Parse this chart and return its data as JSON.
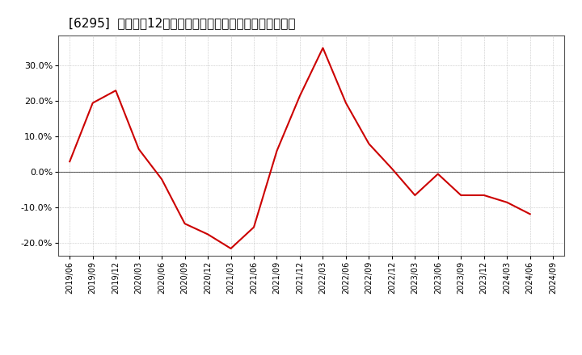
{
  "title": "[6295]  売上高の12か月移動合計の対前年同期増減率の推移",
  "line_color": "#cc0000",
  "background_color": "#ffffff",
  "plot_bg_color": "#ffffff",
  "grid_color": "#999999",
  "zero_line_color": "#555555",
  "border_color": "#555555",
  "ylim": [
    -0.235,
    0.385
  ],
  "yticks": [
    -0.2,
    -0.1,
    0.0,
    0.1,
    0.2,
    0.3
  ],
  "dates": [
    "2019/06",
    "2019/09",
    "2019/12",
    "2020/03",
    "2020/06",
    "2020/09",
    "2020/12",
    "2021/03",
    "2021/06",
    "2021/09",
    "2021/12",
    "2022/03",
    "2022/06",
    "2022/09",
    "2022/12",
    "2023/03",
    "2023/06",
    "2023/09",
    "2023/12",
    "2024/03",
    "2024/06",
    "2024/09"
  ],
  "values": [
    0.03,
    0.195,
    0.23,
    0.065,
    -0.02,
    -0.145,
    -0.175,
    -0.215,
    -0.155,
    0.06,
    0.215,
    0.35,
    0.195,
    0.08,
    0.01,
    -0.065,
    -0.005,
    -0.065,
    -0.065,
    -0.085,
    -0.118,
    null
  ]
}
